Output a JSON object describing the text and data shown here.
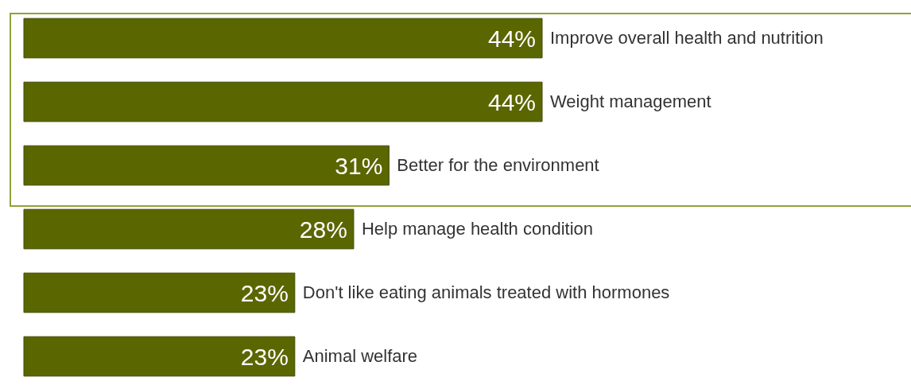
{
  "chart_data": {
    "type": "bar",
    "orientation": "horizontal",
    "color": "#5a6600",
    "categories": [
      "Improve overall health and nutrition",
      "Weight management",
      "Better for the environment",
      "Help manage health condition",
      "Don't like eating animals treated with hormones",
      "Animal welfare"
    ],
    "values": [
      44,
      44,
      31,
      28,
      23,
      23
    ],
    "value_labels": [
      "44%",
      "44%",
      "31%",
      "28%",
      "23%",
      "23%"
    ]
  }
}
